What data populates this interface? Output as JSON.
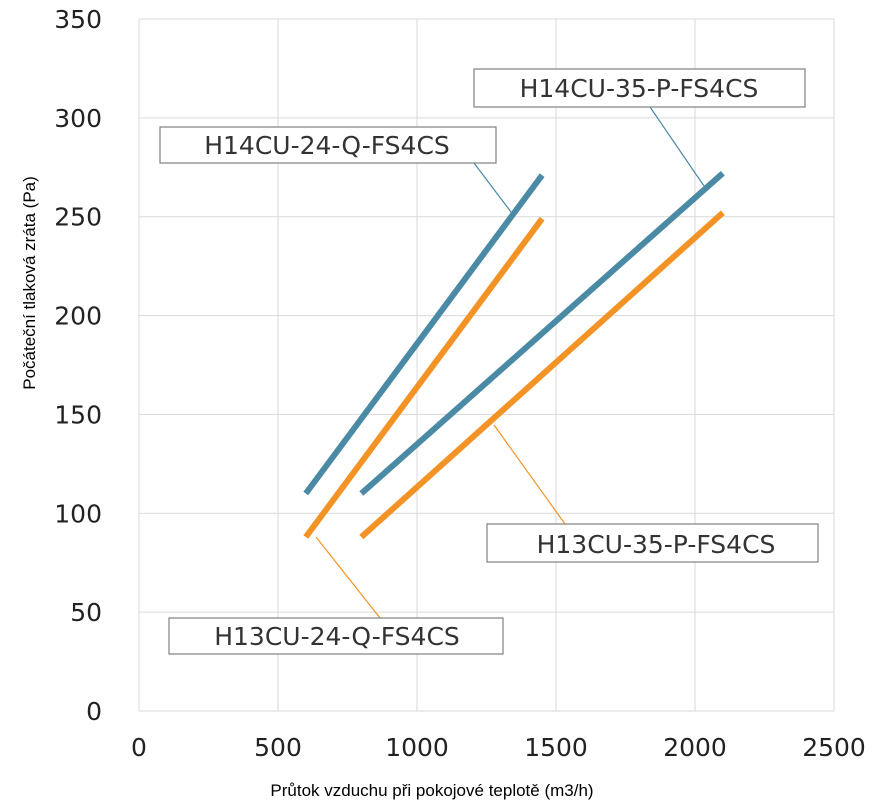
{
  "chart_data": {
    "type": "line",
    "xlabel": "Průtok vzduchu při pokojové teplotě (m3/h)",
    "ylabel": "Počáteční tlaková zráta (Pa)",
    "xlim": [
      0,
      2500
    ],
    "ylim": [
      0,
      350
    ],
    "x_ticks": [
      "0",
      "500",
      "1000",
      "1500",
      "2000",
      "2500"
    ],
    "y_ticks": [
      "0",
      "50",
      "100",
      "150",
      "200",
      "250",
      "300",
      "350"
    ],
    "grid": true,
    "legend": "callout labels on chart",
    "series": [
      {
        "name": "H14CU-24-Q-FS4CS",
        "color": "#4a8aa5",
        "points": [
          [
            600,
            110
          ],
          [
            1450,
            271
          ]
        ]
      },
      {
        "name": "H13CU-24-Q-FS4CS",
        "color": "#f39326",
        "points": [
          [
            600,
            88
          ],
          [
            1450,
            249
          ]
        ]
      },
      {
        "name": "H14CU-35-P-FS4CS",
        "color": "#4a8aa5",
        "points": [
          [
            800,
            110
          ],
          [
            2100,
            272
          ]
        ]
      },
      {
        "name": "H13CU-35-P-FS4CS",
        "color": "#f39326",
        "points": [
          [
            800,
            88
          ],
          [
            2100,
            252
          ]
        ]
      }
    ]
  }
}
